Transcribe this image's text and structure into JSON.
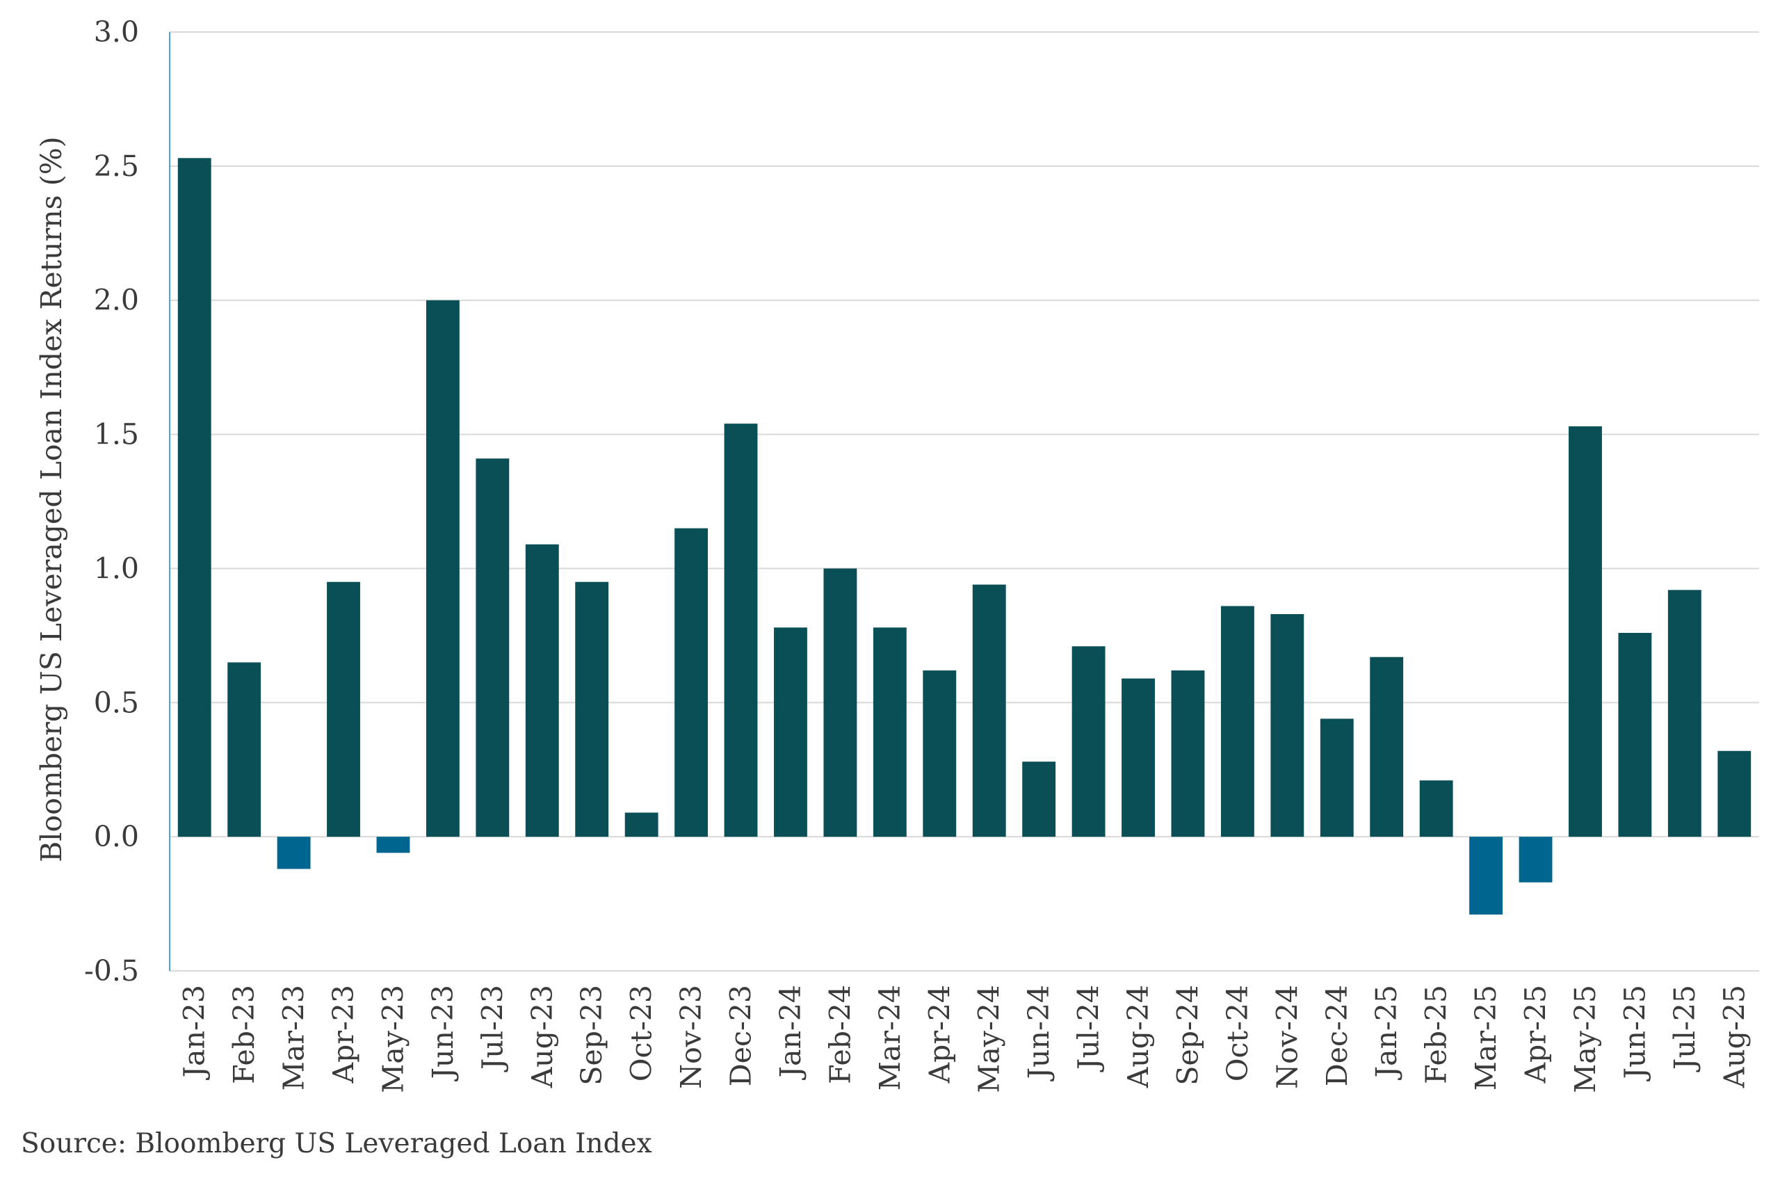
{
  "chart_data": {
    "type": "bar",
    "title": "",
    "xlabel": "",
    "ylabel": "Bloomberg US Leveraged Loan Index Returns (%)",
    "ylim": [
      -0.5,
      3.0
    ],
    "yticks": [
      "3.0",
      "2.5",
      "2.0",
      "1.5",
      "1.0",
      "0.5",
      "0.0",
      "-0.5"
    ],
    "grid": true,
    "categories": [
      "Jan-23",
      "Feb-23",
      "Mar-23",
      "Apr-23",
      "May-23",
      "Jun-23",
      "Jul-23",
      "Aug-23",
      "Sep-23",
      "Oct-23",
      "Nov-23",
      "Dec-23",
      "Jan-24",
      "Feb-24",
      "Mar-24",
      "Apr-24",
      "May-24",
      "Jun-24",
      "Jul-24",
      "Aug-24",
      "Sep-24",
      "Oct-24",
      "Nov-24",
      "Dec-24",
      "Jan-25",
      "Feb-25",
      "Mar-25",
      "Apr-25",
      "May-25",
      "Jun-25",
      "Jul-25",
      "Aug-25"
    ],
    "values": [
      2.53,
      0.65,
      -0.12,
      0.95,
      -0.06,
      2.0,
      1.41,
      1.09,
      0.95,
      0.09,
      1.15,
      1.54,
      0.78,
      1.0,
      0.78,
      0.62,
      0.94,
      0.28,
      0.71,
      0.59,
      0.62,
      0.86,
      0.83,
      0.44,
      0.67,
      0.21,
      -0.29,
      -0.17,
      1.53,
      0.76,
      0.92,
      0.32
    ],
    "colors": {
      "positive": "#0a4f56",
      "negative": "#00668f",
      "grid": "#d9d9d9",
      "axis": "#4da3c7"
    }
  },
  "footer": {
    "source": "Source: Bloomberg US Leveraged Loan Index"
  }
}
